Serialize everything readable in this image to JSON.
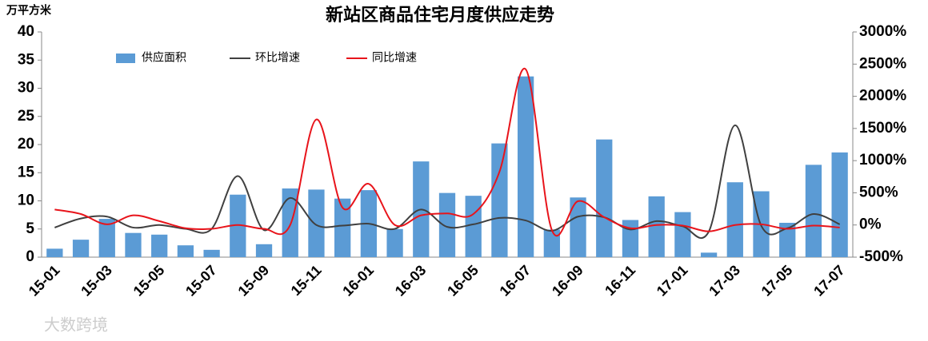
{
  "chart_data": {
    "type": "bar_line_dual",
    "title": "新站区商品住宅月度供应走势",
    "y_axis_label": "万平方米",
    "watermark": "大数跨境",
    "categories": [
      "15-01",
      null,
      "15-03",
      null,
      "15-05",
      null,
      "15-07",
      null,
      "15-09",
      null,
      "15-11",
      null,
      "16-01",
      null,
      "16-03",
      null,
      "16-05",
      null,
      "16-07",
      null,
      "16-09",
      null,
      "16-11",
      null,
      "17-01",
      null,
      "17-03",
      null,
      "17-05",
      null,
      "17-07"
    ],
    "series": [
      {
        "name": "供应面积",
        "type": "bar",
        "color": "#5b9bd5",
        "values": [
          1.5,
          3.1,
          6.8,
          4.3,
          4.0,
          2.1,
          1.3,
          11.1,
          2.3,
          12.2,
          12.0,
          10.4,
          11.9,
          5.0,
          17.0,
          11.4,
          10.9,
          20.2,
          32.1,
          4.9,
          10.6,
          20.9,
          6.6,
          10.8,
          8.0,
          0.8,
          13.3,
          11.7,
          6.1,
          16.4,
          18.6
        ]
      },
      {
        "name": "环比增速",
        "type": "line",
        "axis": "y2",
        "color": "#404040",
        "values": [
          -40,
          100,
          130,
          -40,
          0,
          -60,
          -60,
          760,
          -80,
          420,
          0,
          -10,
          20,
          -60,
          240,
          -30,
          10,
          110,
          70,
          -90,
          130,
          120,
          -70,
          60,
          -20,
          -100,
          1550,
          -10,
          -50,
          170,
          10
        ]
      },
      {
        "name": "同比增速",
        "type": "line",
        "axis": "y2",
        "color": "#e8141b",
        "values": [
          240,
          170,
          10,
          150,
          60,
          -50,
          -60,
          0,
          -60,
          0,
          1640,
          270,
          640,
          0,
          150,
          180,
          170,
          830,
          2420,
          -80,
          370,
          120,
          -50,
          0,
          -10,
          -100,
          0,
          10,
          -60,
          -10,
          -40
        ]
      }
    ],
    "ylim": [
      0,
      40
    ],
    "yticks": [
      0,
      5,
      10,
      15,
      20,
      25,
      30,
      35,
      40
    ],
    "y2lim": [
      -500,
      3000
    ],
    "y2ticks": [
      {
        "value": -500,
        "label": "-500%"
      },
      {
        "value": 0,
        "label": "0%"
      },
      {
        "value": 500,
        "label": "500%"
      },
      {
        "value": 1000,
        "label": "1000%"
      },
      {
        "value": 1500,
        "label": "1500%"
      },
      {
        "value": 2000,
        "label": "2000%"
      },
      {
        "value": 2500,
        "label": "2500%"
      },
      {
        "value": 3000,
        "label": "3000%"
      }
    ],
    "legend": "top-left",
    "grid": false
  }
}
